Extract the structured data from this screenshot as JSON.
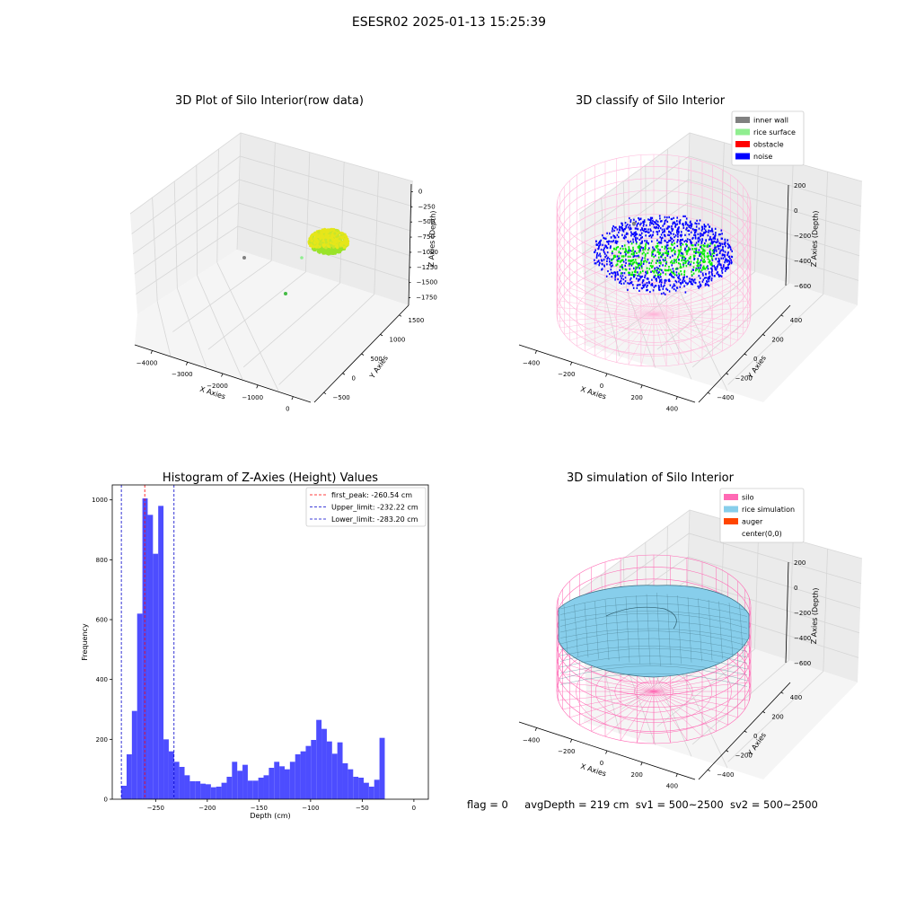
{
  "figure_title": "ESESR02 2025-01-13 15:25:39",
  "footer": {
    "flag": "flag = 0",
    "avg_depth": "avgDepth = 219 cm",
    "sv1": "sv1 = 500~2500",
    "sv2": "sv2 = 500~2500"
  },
  "colors": {
    "inner_wall": "#808080",
    "rice_surface": "#90ee90",
    "obstacle": "#ff0000",
    "noise": "#0000ff",
    "silo": "#ff69b4",
    "rice_simulation": "#87ceeb",
    "auger": "#ff4500",
    "hist_bar": "#4d4dff",
    "first_peak": "#ff0000",
    "limit": "#0000cc",
    "raw_points": "#d4e61f",
    "silo_wire_light": "#ffb6d9"
  },
  "chart_data": [
    {
      "type": "scatter",
      "subtype": "3d",
      "title": "3D Plot of Silo Interior(row data)",
      "xlabel": "X Axies",
      "ylabel": "Y Axies",
      "zlabel": "Z Axies (Depth)",
      "x_ticks": [
        "−4000",
        "−3000",
        "−2000",
        "−1000",
        "0"
      ],
      "y_ticks": [
        "−500",
        "0",
        "500",
        "1000",
        "1500"
      ],
      "z_ticks": [
        "0",
        "−250",
        "−500",
        "−750",
        "−1000",
        "−1250",
        "−1500",
        "−1750"
      ],
      "xlim": [
        -4100,
        300
      ],
      "ylim": [
        -700,
        1700
      ],
      "zlim": [
        -1800,
        50
      ],
      "outliers": [
        {
          "x": -3500,
          "y": 500,
          "z": -1250,
          "color": "#808080"
        },
        {
          "x": -1000,
          "y": -200,
          "z": -1750,
          "color": "#44bb44"
        },
        {
          "x": -300,
          "y": 900,
          "z": -1000,
          "color": "#90ee90"
        }
      ],
      "cluster_center": {
        "x": 0,
        "y": 0,
        "z": -230
      }
    },
    {
      "type": "scatter",
      "subtype": "3d",
      "title": "3D classify of Silo Interior",
      "xlabel": "X Axies",
      "ylabel": "Y Axies",
      "zlabel": "Z Axies (Depth)",
      "x_ticks": [
        "−400",
        "−200",
        "0",
        "200",
        "400"
      ],
      "y_ticks": [
        "−400",
        "−200",
        "0",
        "200",
        "400"
      ],
      "z_ticks": [
        "200",
        "0",
        "−200",
        "−400",
        "−600"
      ],
      "xlim": [
        -500,
        500
      ],
      "ylim": [
        -500,
        500
      ],
      "zlim": [
        -700,
        250
      ],
      "legend": [
        "inner wall",
        "rice surface",
        "obstacle",
        "noise"
      ],
      "legend_position": "top-right",
      "silo": {
        "radius": 450,
        "z_top": 0,
        "z_bottom": -700
      }
    },
    {
      "type": "bar",
      "subtype": "histogram",
      "title": "Histogram of Z-Axies (Height) Values",
      "xlabel": "Depth (cm)",
      "ylabel": "Frequency",
      "xlim": [
        -292,
        14
      ],
      "ylim": [
        0,
        1050
      ],
      "x_ticks": [
        -250,
        -200,
        -150,
        -100,
        -50,
        0
      ],
      "y_ticks": [
        0,
        200,
        400,
        600,
        800,
        1000
      ],
      "bin_start": -283.2,
      "bin_width": 5.1,
      "values": [
        45,
        150,
        295,
        620,
        1005,
        950,
        820,
        980,
        200,
        160,
        125,
        108,
        80,
        60,
        60,
        52,
        50,
        40,
        42,
        55,
        75,
        125,
        95,
        115,
        62,
        62,
        72,
        80,
        105,
        125,
        110,
        100,
        125,
        150,
        160,
        178,
        198,
        265,
        235,
        193,
        152,
        190,
        120,
        100,
        75,
        72,
        55,
        42,
        65,
        205
      ],
      "vlines": [
        {
          "x": -260.54,
          "label": "first_peak: -260.54 cm",
          "color": "#ff0000"
        },
        {
          "x": -232.22,
          "label": "Upper_limit: -232.22 cm",
          "color": "#0000cc"
        },
        {
          "x": -283.2,
          "label": "Lower_limit: -283.20 cm",
          "color": "#0000cc"
        }
      ],
      "legend_position": "top-right"
    },
    {
      "type": "area",
      "subtype": "3d surface",
      "title": "3D simulation of Silo Interior",
      "xlabel": "X Axies",
      "ylabel": "Y Axies",
      "zlabel": "Z Axies (Depth)",
      "x_ticks": [
        "−400",
        "−200",
        "0",
        "200",
        "400"
      ],
      "y_ticks": [
        "−400",
        "−200",
        "0",
        "200",
        "400"
      ],
      "z_ticks": [
        "200",
        "0",
        "−200",
        "−400",
        "−600"
      ],
      "xlim": [
        -500,
        500
      ],
      "ylim": [
        -500,
        500
      ],
      "zlim": [
        -700,
        250
      ],
      "legend": [
        "silo",
        "rice simulation",
        "auger",
        "center(0,0)"
      ],
      "legend_position": "top-right",
      "silo": {
        "radius": 450,
        "z_top": 0,
        "z_bottom": -700
      }
    }
  ]
}
